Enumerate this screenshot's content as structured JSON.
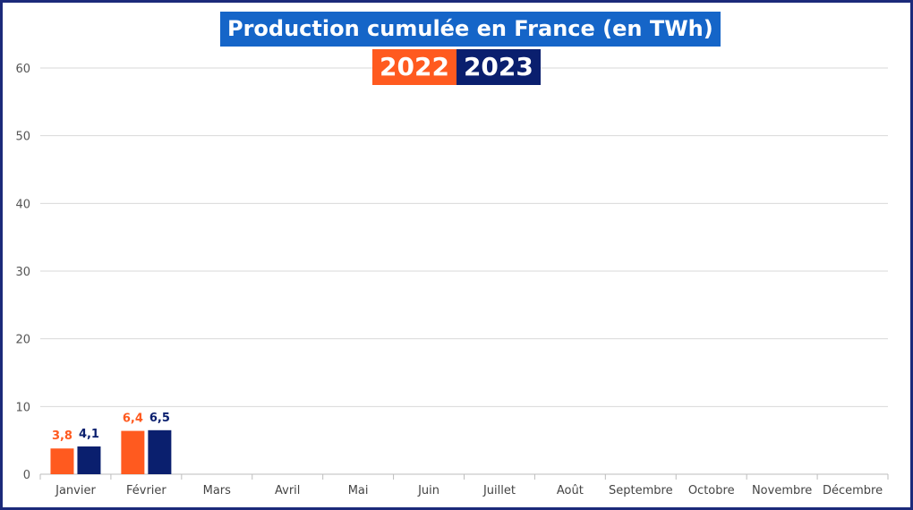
{
  "chart_data": {
    "type": "bar",
    "title": "Production cumulée en France (en TWh)",
    "categories": [
      "Janvier",
      "Février",
      "Mars",
      "Avril",
      "Mai",
      "Juin",
      "Juillet",
      "Août",
      "Septembre",
      "Octobre",
      "Novembre",
      "Décembre"
    ],
    "series": [
      {
        "name": "2022",
        "color": "#ff5a1f",
        "values": [
          3.8,
          6.4,
          null,
          null,
          null,
          null,
          null,
          null,
          null,
          null,
          null,
          null
        ],
        "labels": [
          "3,8",
          "6,4"
        ]
      },
      {
        "name": "2023",
        "color": "#0a1f6e",
        "values": [
          4.1,
          6.5,
          null,
          null,
          null,
          null,
          null,
          null,
          null,
          null,
          null,
          null
        ],
        "labels": [
          "4,1",
          "6,5"
        ]
      }
    ],
    "ylim": [
      0,
      60
    ],
    "yticks": [
      0,
      10,
      20,
      30,
      40,
      50,
      60
    ],
    "grid": true,
    "legend_position": "top-center"
  }
}
